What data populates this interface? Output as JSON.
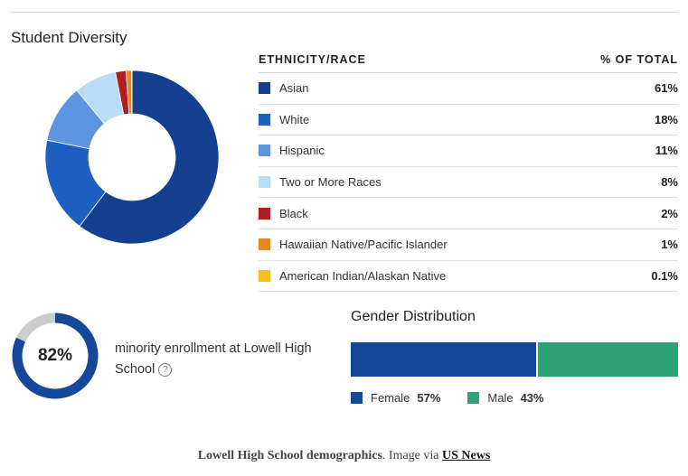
{
  "title": "Student Diversity",
  "table": {
    "header_label": "ETHNICITY/RACE",
    "header_value": "% OF TOTAL",
    "rows": [
      {
        "label": "Asian",
        "value": "61%"
      },
      {
        "label": "White",
        "value": "18%"
      },
      {
        "label": "Hispanic",
        "value": "11%"
      },
      {
        "label": "Two or More Races",
        "value": "8%"
      },
      {
        "label": "Black",
        "value": "2%"
      },
      {
        "label": "Hawaiian Native/Pacific Islander",
        "value": "1%"
      },
      {
        "label": "American Indian/Alaskan Native",
        "value": "0.1%"
      }
    ]
  },
  "minority": {
    "percent_label": "82%",
    "text": "minority enrollment at Lowell High School",
    "help_glyph": "?"
  },
  "gender": {
    "title": "Gender Distribution",
    "female_label": "Female",
    "female_pct": "57%",
    "male_label": "Male",
    "male_pct": "43%"
  },
  "caption": {
    "bold": "Lowell High School demographics",
    "middle": ". Image via ",
    "link": "US News"
  },
  "colors": {
    "asian": "#14408f",
    "white": "#1d60c2",
    "hispanic": "#5d95e0",
    "two_or_more": "#b9dcf7",
    "black": "#b01e23",
    "hawaiian": "#e08a20",
    "american_indian": "#f2c21b",
    "female": "#15479a",
    "male": "#2ea37a",
    "ring_track": "#cccccc"
  },
  "chart_data": [
    {
      "type": "pie",
      "title": "Student Diversity",
      "categories": [
        "Asian",
        "White",
        "Hispanic",
        "Two or More Races",
        "Black",
        "Hawaiian Native/Pacific Islander",
        "American Indian/Alaskan Native"
      ],
      "values": [
        61,
        18,
        11,
        8,
        2,
        1,
        0.1
      ],
      "unit": "%"
    },
    {
      "type": "pie",
      "title": "minority enrollment at Lowell High School",
      "values": [
        82
      ],
      "unit": "%"
    },
    {
      "type": "bar",
      "title": "Gender Distribution",
      "categories": [
        "Female",
        "Male"
      ],
      "values": [
        57,
        43
      ],
      "unit": "%",
      "orientation": "horizontal-stacked"
    }
  ]
}
